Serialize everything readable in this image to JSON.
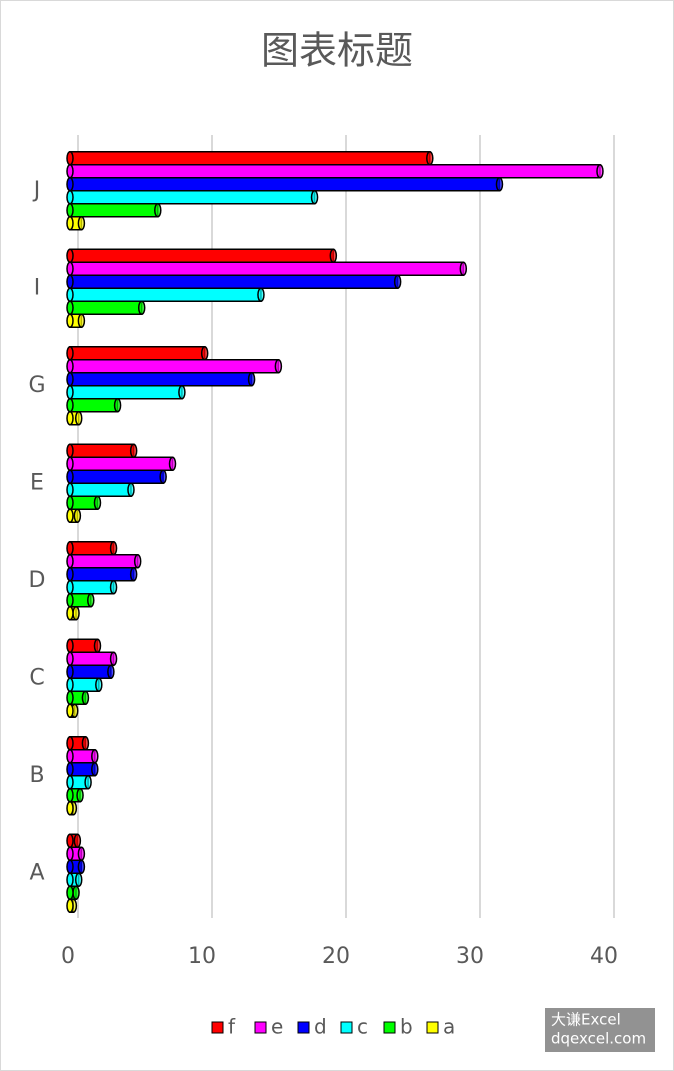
{
  "chart_data": {
    "type": "bar",
    "orientation": "horizontal",
    "title": "图表标题",
    "categories": [
      "A",
      "B",
      "C",
      "D",
      "E",
      "G",
      "I",
      "J"
    ],
    "series": [
      {
        "name": "f",
        "color": "#ff0000",
        "values": [
          0.7,
          1.3,
          2.2,
          3.4,
          4.9,
          10.2,
          19.8,
          27.0
        ]
      },
      {
        "name": "e",
        "color": "#ff00ff",
        "values": [
          1.0,
          2.0,
          3.4,
          5.2,
          7.8,
          15.7,
          29.5,
          39.7
        ]
      },
      {
        "name": "d",
        "color": "#0000ff",
        "values": [
          1.0,
          2.0,
          3.2,
          4.9,
          7.1,
          13.7,
          24.6,
          32.2
        ]
      },
      {
        "name": "c",
        "color": "#00ffff",
        "values": [
          0.8,
          1.5,
          2.3,
          3.4,
          4.7,
          8.5,
          14.4,
          18.4
        ]
      },
      {
        "name": "b",
        "color": "#00ff00",
        "values": [
          0.6,
          0.9,
          1.3,
          1.7,
          2.2,
          3.7,
          5.5,
          6.7
        ]
      },
      {
        "name": "a",
        "color": "#ffff00",
        "values": [
          0.4,
          0.4,
          0.5,
          0.6,
          0.7,
          0.8,
          1.0,
          1.0
        ]
      }
    ],
    "xlim": [
      0,
      40
    ],
    "xticks": [
      0,
      10,
      20,
      30,
      40
    ],
    "grid": true,
    "legend": "bottom",
    "annotations": [
      "大谦Excel",
      "dqexcel.com"
    ]
  }
}
